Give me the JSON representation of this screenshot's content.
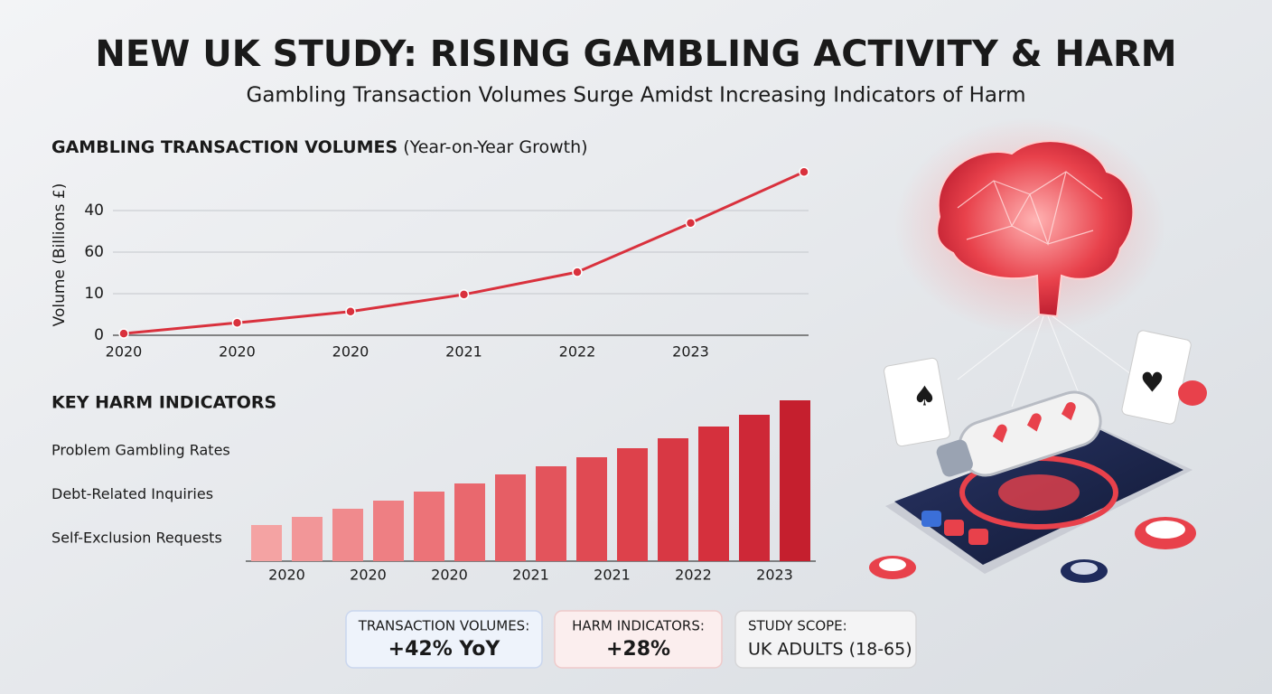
{
  "header": {
    "title": "NEW UK STUDY: RISING GAMBLING ACTIVITY & HARM",
    "subtitle": "Gambling Transaction Volumes Surge Amidst Increasing Indicators of Harm"
  },
  "chart_data": [
    {
      "type": "line",
      "title": "GAMBLING TRANSACTION VOLUMES",
      "subtitle": "(Year-on-Year Growth)",
      "y_label": "Volume (Billions £)",
      "categories": [
        "2020",
        "2020",
        "2020",
        "2021",
        "2022",
        "2023",
        null
      ],
      "series": [
        {
          "color": "#d9313d",
          "values": [
            0.4,
            3,
            5.7,
            9.8,
            15.2,
            27,
            39.3
          ]
        }
      ],
      "ylim": [
        0,
        30
      ],
      "yticks": [
        0,
        10,
        {
          "value": 20,
          "label": "60"
        },
        {
          "value": 30,
          "label": "40"
        }
      ],
      "grid": true
    },
    {
      "type": "bar",
      "title": "KEY HARM INDICATORS",
      "indicators": [
        "Problem Gambling Rates",
        "Debt-Related Inquiries",
        "Self-Exclusion Requests"
      ],
      "categories": [
        "2020",
        "2020",
        "2020",
        "2021",
        "2021",
        "2022",
        "2023"
      ],
      "series": [
        {
          "colors": [
            "#f4a3a3",
            "#f08a8d",
            "#ec7378",
            "#e65e65",
            "#e04a53",
            "#d83844",
            "#ce2837"
          ],
          "values": [
            40,
            58,
            77,
            96,
            115,
            136,
            162
          ]
        },
        {
          "colors": [
            "#f29698",
            "#ee7f83",
            "#e9686e",
            "#e3545c",
            "#dd414b",
            "#d5303d",
            "#c51f2e"
          ],
          "values": [
            49,
            67,
            86,
            105,
            125,
            149,
            178
          ]
        }
      ]
    }
  ],
  "cards": [
    {
      "label": "TRANSACTION VOLUMES:",
      "value": "+42% YoY"
    },
    {
      "label": "HARM INDICATORS:",
      "value": "+28%"
    },
    {
      "label": "STUDY SCOPE:",
      "value": "UK ADULTS (18-65)"
    }
  ]
}
